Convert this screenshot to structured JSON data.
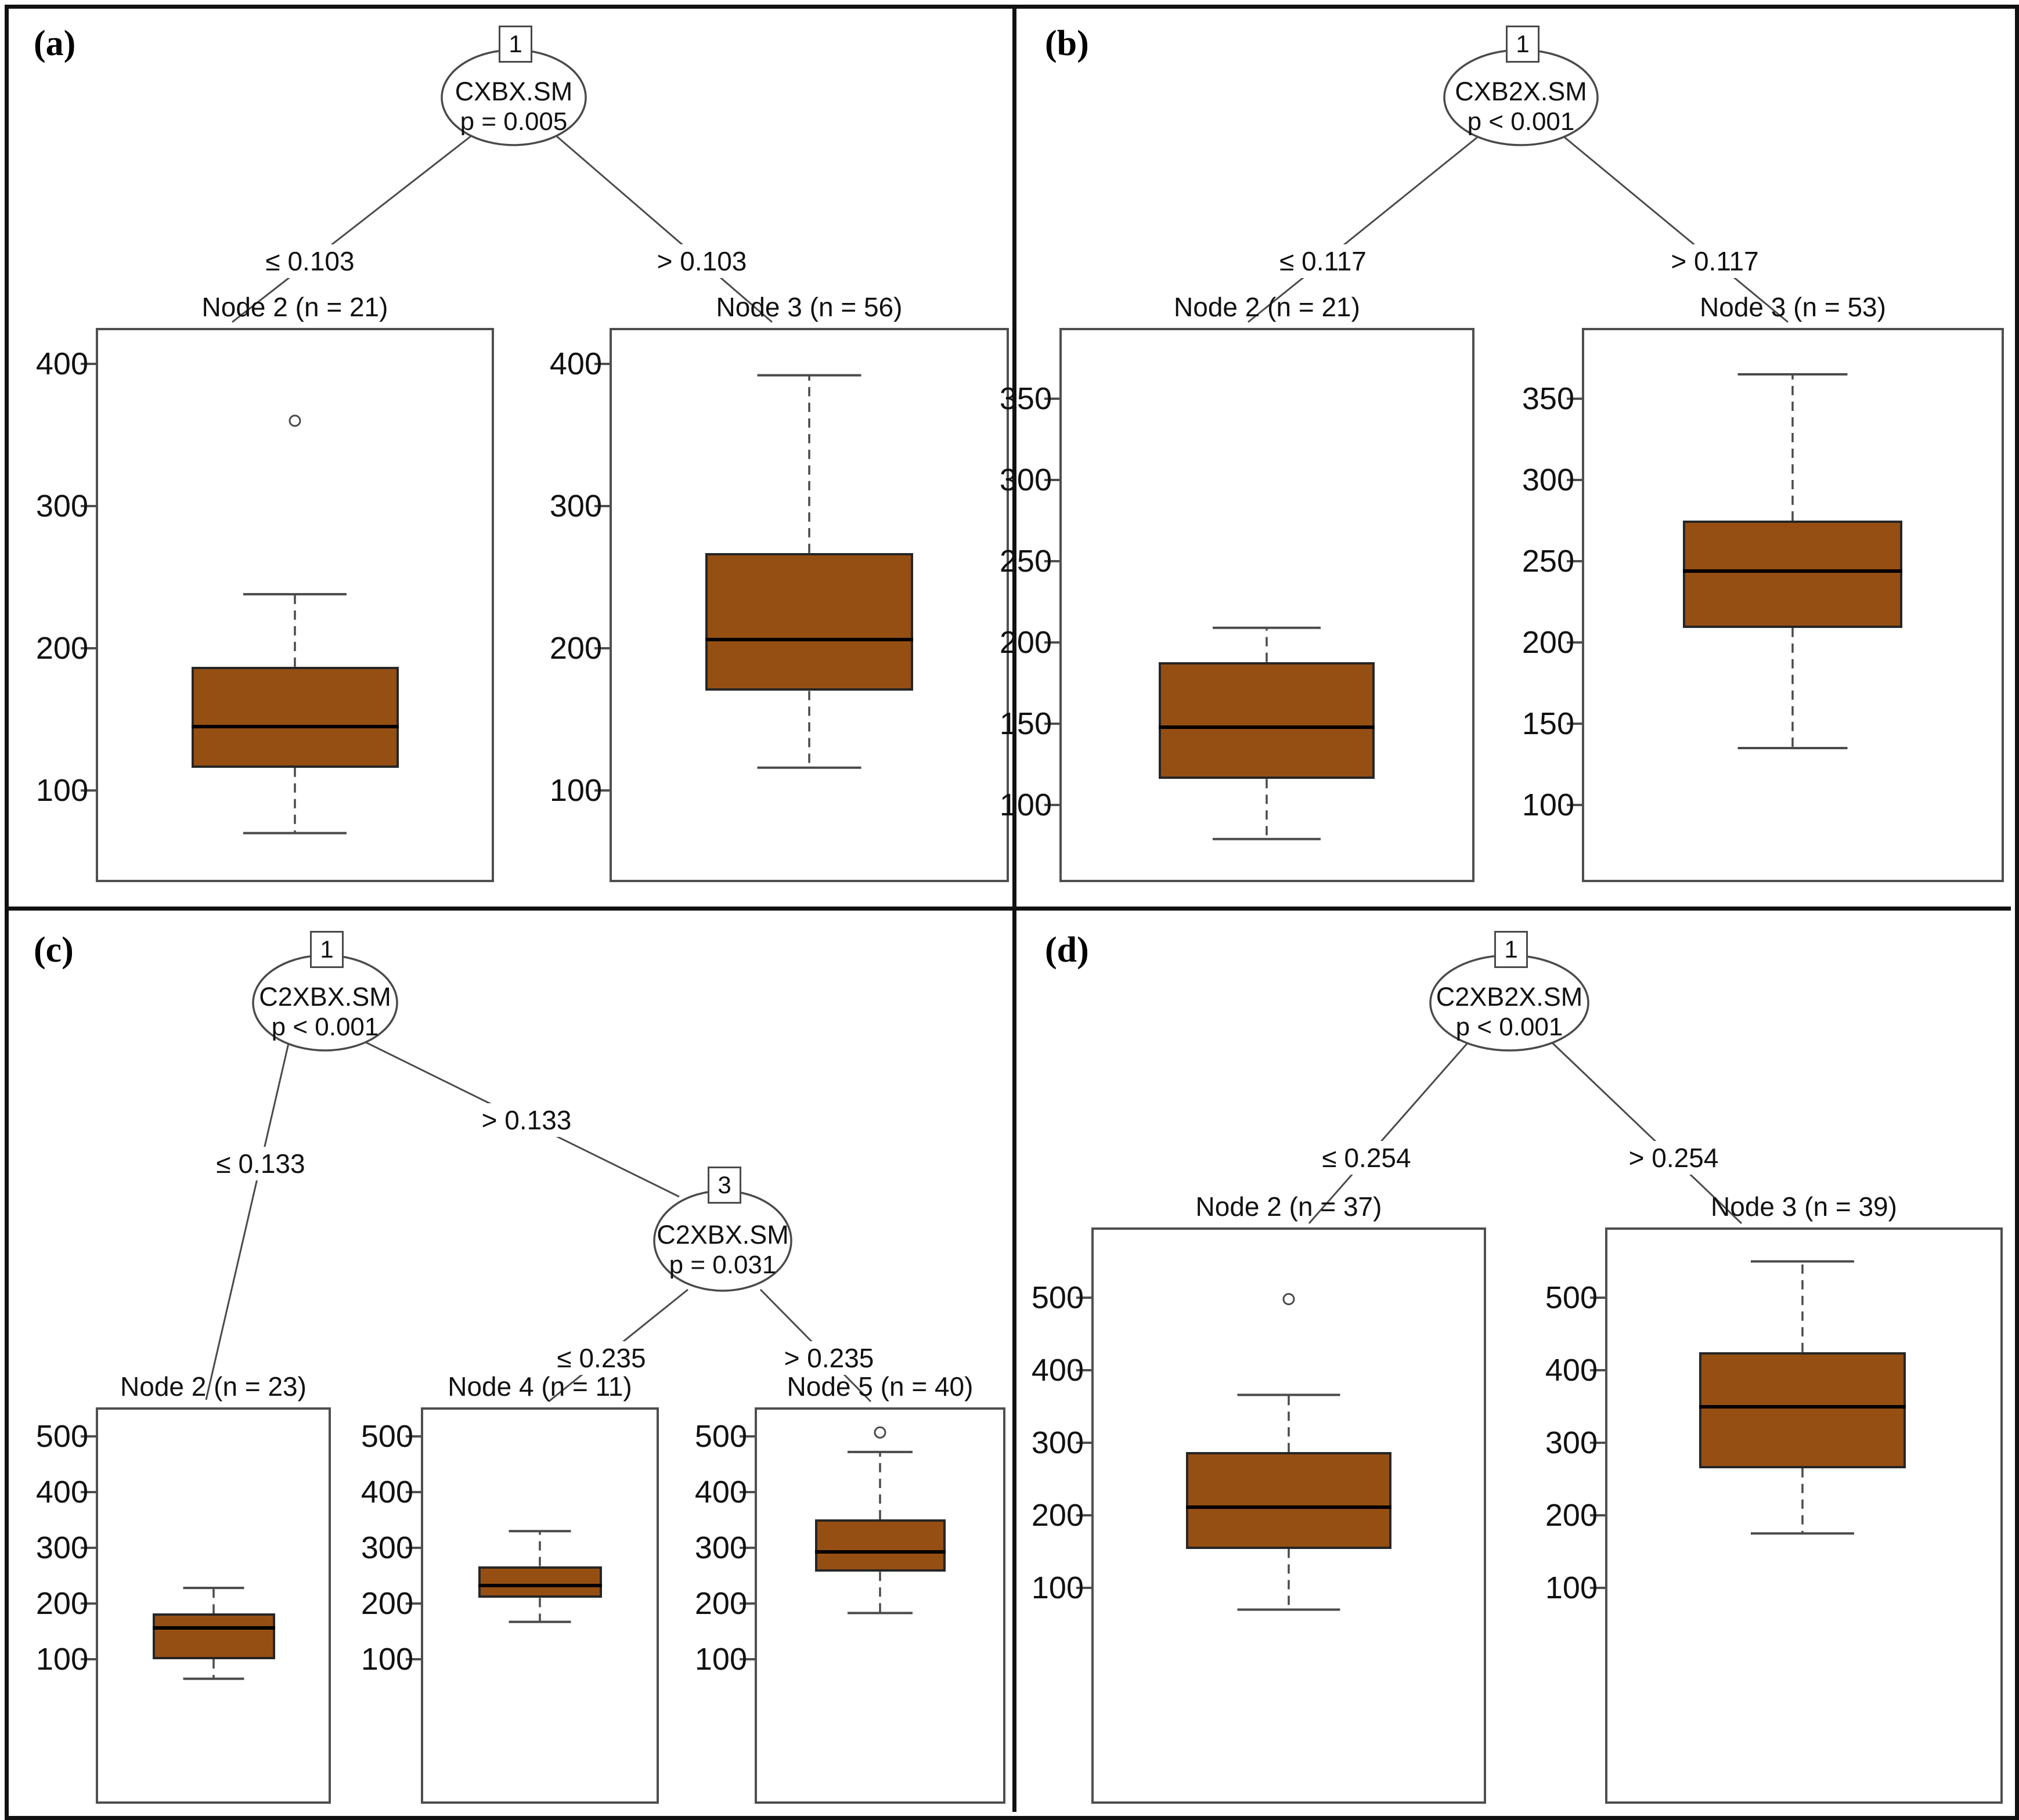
{
  "colors": {
    "box_fill": "#964F13",
    "box_border": "#262626",
    "median": "#000000",
    "line": "#4a4a4a",
    "frame": "#4f4f4f",
    "text": "#111111"
  },
  "chart_data": [
    {
      "type": "boxplot",
      "panel_label": "(a)",
      "tree": {
        "nodes": [
          {
            "number": "1",
            "variable": "CXBX.SM",
            "p_label": "p = 0.005"
          }
        ],
        "splits": [
          "≤ 0.103",
          "> 0.103"
        ]
      },
      "leaves": [
        {
          "title": "Node 2 (n = 21)",
          "n": 21,
          "axis_ticks": [
            400,
            300,
            200,
            100
          ],
          "stats": {
            "whisker_low": 70,
            "q1": 116,
            "median": 145,
            "q3": 187,
            "whisker_high": 238,
            "outliers": [
              360
            ]
          }
        },
        {
          "title": "Node 3 (n = 56)",
          "n": 56,
          "axis_ticks": [
            400,
            300,
            200,
            100
          ],
          "stats": {
            "whisker_low": 116,
            "q1": 170,
            "median": 206,
            "q3": 267,
            "whisker_high": 392,
            "outliers": []
          }
        }
      ]
    },
    {
      "type": "boxplot",
      "panel_label": "(b)",
      "tree": {
        "nodes": [
          {
            "number": "1",
            "variable": "CXB2X.SM",
            "p_label": "p < 0.001"
          }
        ],
        "splits": [
          "≤ 0.117",
          "> 0.117"
        ]
      },
      "leaves": [
        {
          "title": "Node 2 (n = 21)",
          "n": 21,
          "axis_ticks": [
            350,
            300,
            250,
            200,
            150,
            100
          ],
          "stats": {
            "whisker_low": 79,
            "q1": 116,
            "median": 148,
            "q3": 188,
            "whisker_high": 209,
            "outliers": []
          }
        },
        {
          "title": "Node 3 (n = 53)",
          "n": 53,
          "axis_ticks": [
            350,
            300,
            250,
            200,
            150,
            100
          ],
          "stats": {
            "whisker_low": 135,
            "q1": 209,
            "median": 244,
            "q3": 275,
            "whisker_high": 365,
            "outliers": []
          }
        }
      ]
    },
    {
      "type": "boxplot",
      "panel_label": "(c)",
      "tree": {
        "nodes": [
          {
            "number": "1",
            "variable": "C2XBX.SM",
            "p_label": "p < 0.001"
          },
          {
            "number": "3",
            "variable": "C2XBX.SM",
            "p_label": "p = 0.031"
          }
        ],
        "splits": [
          "≤ 0.133",
          "> 0.133",
          "≤ 0.235",
          "> 0.235"
        ]
      },
      "leaves": [
        {
          "title": "Node 2 (n = 23)",
          "n": 23,
          "axis_ticks": [
            500,
            400,
            300,
            200,
            100
          ],
          "stats": {
            "whisker_low": 65,
            "q1": 100,
            "median": 156,
            "q3": 182,
            "whisker_high": 228,
            "outliers": []
          }
        },
        {
          "title": "Node 4 (n = 11)",
          "n": 11,
          "axis_ticks": [
            500,
            400,
            300,
            200,
            100
          ],
          "stats": {
            "whisker_low": 167,
            "q1": 210,
            "median": 232,
            "q3": 267,
            "whisker_high": 330,
            "outliers": []
          }
        },
        {
          "title": "Node 5 (n = 40)",
          "n": 40,
          "axis_ticks": [
            500,
            400,
            300,
            200,
            100
          ],
          "stats": {
            "whisker_low": 183,
            "q1": 257,
            "median": 293,
            "q3": 351,
            "whisker_high": 472,
            "outliers": [
              507
            ]
          }
        }
      ]
    },
    {
      "type": "boxplot",
      "panel_label": "(d)",
      "tree": {
        "nodes": [
          {
            "number": "1",
            "variable": "C2XB2X.SM",
            "p_label": "p < 0.001"
          }
        ],
        "splits": [
          "≤ 0.254",
          "> 0.254"
        ]
      },
      "leaves": [
        {
          "title": "Node 2 (n = 37)",
          "n": 37,
          "axis_ticks": [
            500,
            400,
            300,
            200,
            100
          ],
          "stats": {
            "whisker_low": 70,
            "q1": 154,
            "median": 211,
            "q3": 287,
            "whisker_high": 366,
            "outliers": [
              498
            ]
          }
        },
        {
          "title": "Node 3 (n = 39)",
          "n": 39,
          "axis_ticks": [
            500,
            400,
            300,
            200,
            100
          ],
          "stats": {
            "whisker_low": 175,
            "q1": 265,
            "median": 350,
            "q3": 425,
            "whisker_high": 550,
            "outliers": []
          }
        }
      ]
    }
  ]
}
